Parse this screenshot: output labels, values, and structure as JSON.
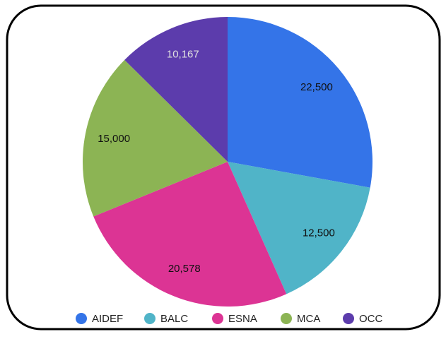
{
  "chart_data": {
    "type": "pie",
    "categories": [
      "AIDEF",
      "BALC",
      "ESNA",
      "MCA",
      "OCC"
    ],
    "values": [
      22500,
      12500,
      20578,
      15000,
      10167
    ],
    "value_labels": [
      "22,500",
      "12,500",
      "20,578",
      "15,000",
      "10,167"
    ],
    "colors": [
      "#3474e8",
      "#50b4c8",
      "#dc3494",
      "#8cb454",
      "#5c3cac"
    ],
    "legend": "bottom"
  }
}
